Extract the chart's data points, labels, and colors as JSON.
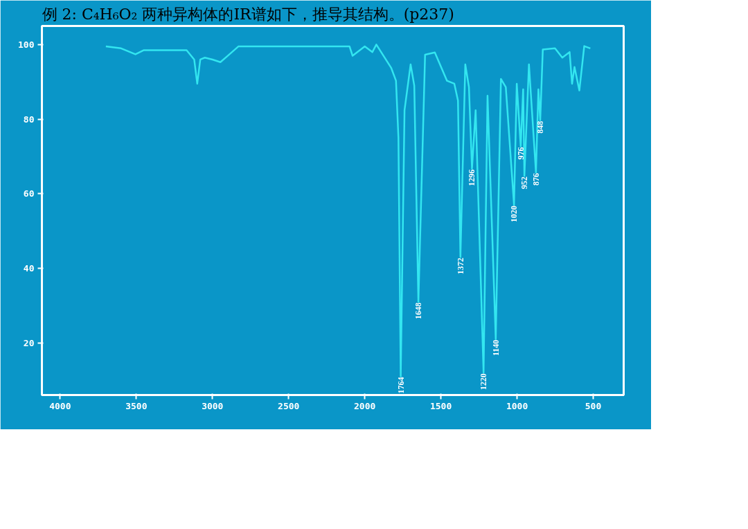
{
  "chart_data": {
    "type": "line",
    "title": "例 2: C₄H₆O₂ 两种异构体的IR谱如下，推导其结构。(p237)",
    "x": [
      3700,
      3600,
      3506,
      3450,
      3300,
      3170,
      3120,
      3100,
      3080,
      3050,
      3000,
      2948,
      2900,
      2830,
      2500,
      2100,
      2080,
      2000,
      1950,
      1924,
      1827,
      1795,
      1779,
      1764,
      1739,
      1699,
      1675,
      1648,
      1604,
      1540,
      1460,
      1412,
      1388,
      1372,
      1340,
      1316,
      1296,
      1272,
      1220,
      1194,
      1140,
      1106,
      1074,
      1020,
      1002,
      976,
      960,
      952,
      922,
      876,
      860,
      848,
      831,
      751,
      703,
      655,
      639,
      623,
      591,
      559,
      519
    ],
    "series": [
      {
        "color": "#33e6f0",
        "values": [
          99.5,
          99,
          97.4,
          98.5,
          98.5,
          98.5,
          96,
          89.5,
          96,
          96.5,
          96,
          95.3,
          97,
          99.5,
          99.5,
          99.5,
          97,
          99.5,
          98,
          100,
          93.8,
          90.3,
          75,
          11,
          82.4,
          94.7,
          89,
          31,
          97.3,
          97.9,
          90.3,
          89.5,
          85,
          43,
          94.7,
          88.6,
          66.7,
          82.4,
          12,
          86.3,
          21,
          90.8,
          88.6,
          57,
          89.5,
          72.7,
          88,
          64.8,
          94.7,
          65.7,
          88,
          79.7,
          98.7,
          99,
          96.5,
          98,
          89.5,
          94,
          87.7,
          99.6,
          99
        ]
      }
    ],
    "annotations": [
      {
        "text": "1764",
        "x": 1764,
        "y": 11
      },
      {
        "text": "1648",
        "x": 1648,
        "y": 31
      },
      {
        "text": "1372",
        "x": 1372,
        "y": 43
      },
      {
        "text": "1296",
        "x": 1296,
        "y": 66.7
      },
      {
        "text": "1220",
        "x": 1220,
        "y": 12
      },
      {
        "text": "1140",
        "x": 1140,
        "y": 21
      },
      {
        "text": "1020",
        "x": 1020,
        "y": 57
      },
      {
        "text": "976",
        "x": 976,
        "y": 72.7
      },
      {
        "text": "952",
        "x": 952,
        "y": 64.8
      },
      {
        "text": "876",
        "x": 876,
        "y": 65.7
      },
      {
        "text": "848",
        "x": 848,
        "y": 79.7
      }
    ],
    "xlim": [
      4120,
      300
    ],
    "ylim": [
      6,
      105
    ],
    "xticks": [
      4000,
      3500,
      3000,
      2500,
      2000,
      1500,
      1000,
      500
    ],
    "yticks": [
      20,
      40,
      60,
      80,
      100
    ],
    "grid": false
  }
}
